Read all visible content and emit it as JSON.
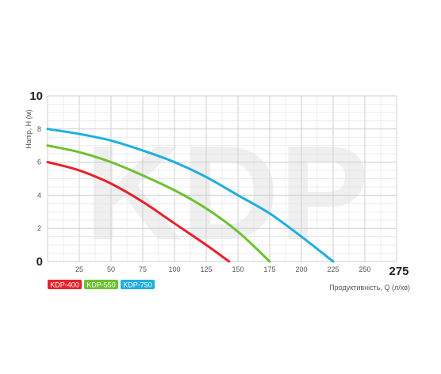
{
  "chart_data": {
    "type": "line",
    "watermark": "KDP",
    "xlabel": "Продуктивність, Q (л/хв)",
    "ylabel": "Напір, H (м)",
    "xlim": [
      0,
      275
    ],
    "ylim": [
      0,
      10
    ],
    "x_ticks": [
      "0",
      "25",
      "50",
      "75",
      "100",
      "125",
      "150",
      "175",
      "200",
      "225",
      "250",
      "275"
    ],
    "y_ticks": [
      "0",
      "2",
      "4",
      "6",
      "8",
      "10"
    ],
    "grid": true,
    "legend_position": "bottom-left",
    "series": [
      {
        "name": "KDP-400",
        "color": "#e8212b",
        "x": [
          0,
          25,
          50,
          75,
          100,
          125,
          143
        ],
        "y": [
          6.0,
          5.5,
          4.7,
          3.6,
          2.3,
          1.0,
          0
        ]
      },
      {
        "name": "KDP-550",
        "color": "#6cc12e",
        "x": [
          0,
          25,
          50,
          75,
          100,
          125,
          150,
          175
        ],
        "y": [
          7.0,
          6.6,
          6.0,
          5.2,
          4.3,
          3.2,
          1.8,
          0
        ]
      },
      {
        "name": "KDP-750",
        "color": "#1eaee0",
        "x": [
          0,
          25,
          50,
          75,
          100,
          125,
          150,
          175,
          200,
          225
        ],
        "y": [
          8.0,
          7.7,
          7.3,
          6.7,
          6.0,
          5.1,
          4.0,
          2.9,
          1.5,
          0
        ]
      }
    ]
  }
}
